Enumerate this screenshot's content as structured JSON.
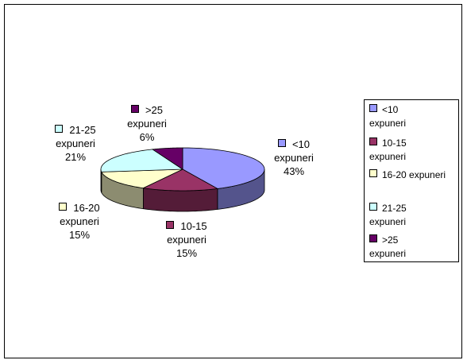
{
  "chart_data": {
    "type": "pie",
    "categories": [
      "<10 expuneri",
      "10-15 expuneri",
      "16-20 expuneri",
      "21-25 expuneri",
      ">25 expuneri"
    ],
    "values": [
      43,
      15,
      15,
      21,
      6
    ],
    "value_labels": [
      "43%",
      "15%",
      "15%",
      "21%",
      "6%"
    ],
    "colors": [
      "#9999ff",
      "#993366",
      "#ffffcc",
      "#ccffff",
      "#660066"
    ],
    "legend": "right"
  }
}
